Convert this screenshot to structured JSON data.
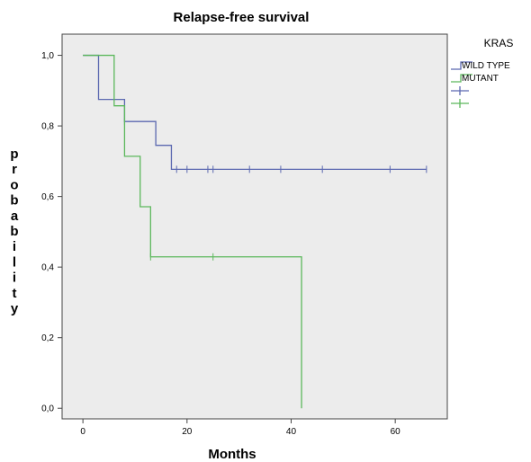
{
  "chart_data": {
    "type": "line",
    "title": "Relapse-free survival",
    "xlabel": "Months",
    "ylabel": "probability",
    "xlim": [
      -4,
      70
    ],
    "ylim": [
      -0.03,
      1.06
    ],
    "xticks": [
      0,
      20,
      40,
      60
    ],
    "yticks": [
      0.0,
      0.2,
      0.4,
      0.6,
      0.8,
      1.0
    ],
    "ytick_labels": [
      "0,0",
      "0,2",
      "0,4",
      "0,6",
      "0,8",
      "1,0"
    ],
    "grid": false,
    "legend_title": "KRAS",
    "legend_position": "right",
    "plot_background": "#ececec",
    "series": [
      {
        "name": "WILD TYPE",
        "color": "#5b68b0",
        "step_x": [
          0,
          3,
          8,
          14,
          17,
          66
        ],
        "step_y": [
          1.0,
          0.875,
          0.8125,
          0.745,
          0.677,
          0.677
        ],
        "censored": [
          [
            8,
            0.8125
          ],
          [
            18,
            0.677
          ],
          [
            20,
            0.677
          ],
          [
            24,
            0.677
          ],
          [
            25,
            0.677
          ],
          [
            32,
            0.677
          ],
          [
            38,
            0.677
          ],
          [
            46,
            0.677
          ],
          [
            59,
            0.677
          ],
          [
            66,
            0.677
          ]
        ]
      },
      {
        "name": "MUTANT",
        "color": "#5cb85c",
        "step_x": [
          0,
          6,
          8,
          11,
          13,
          42
        ],
        "step_y": [
          1.0,
          0.857,
          0.714,
          0.571,
          0.429,
          0.0
        ],
        "censored": [
          [
            13,
            0.429
          ],
          [
            25,
            0.429
          ]
        ]
      }
    ],
    "legend_entries": [
      {
        "label": "WILD TYPE",
        "kind": "line",
        "color": "#5b68b0"
      },
      {
        "label": "MUTANT",
        "kind": "line",
        "color": "#5cb85c"
      },
      {
        "label": "",
        "kind": "censor",
        "color": "#5b68b0"
      },
      {
        "label": "",
        "kind": "censor",
        "color": "#5cb85c"
      }
    ]
  }
}
